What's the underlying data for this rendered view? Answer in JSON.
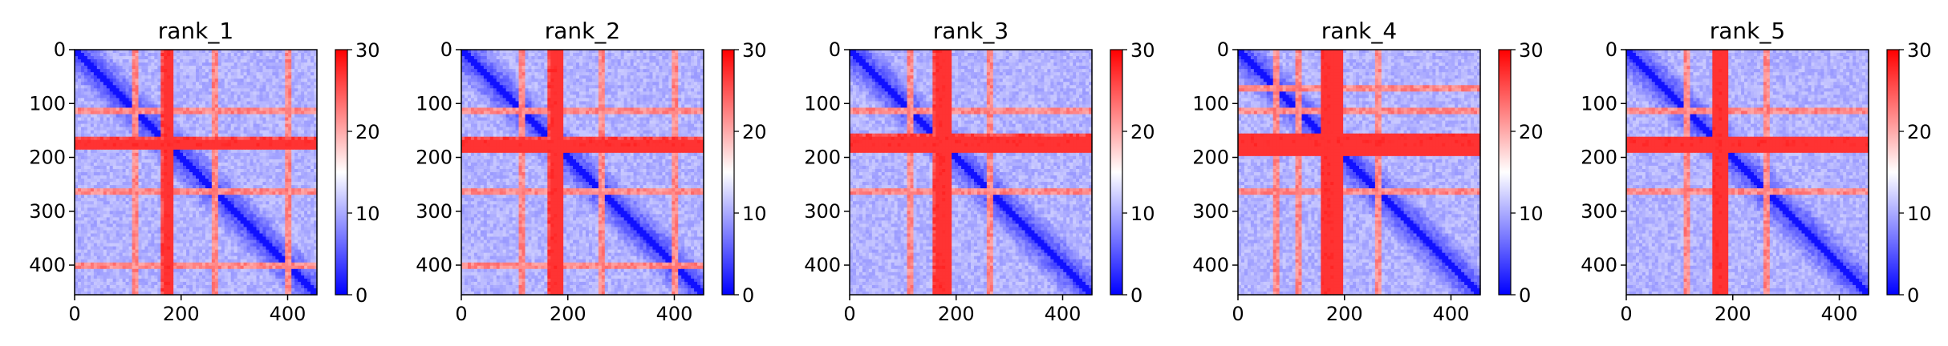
{
  "chart_data": [
    {
      "type": "heatmap",
      "title": "rank_1",
      "x_ticks": [
        0,
        200,
        400
      ],
      "y_ticks": [
        0,
        100,
        200,
        300,
        400
      ],
      "xlim": [
        0,
        455
      ],
      "ylim": [
        455,
        0
      ],
      "colorbar": {
        "ticks": [
          0,
          10,
          20,
          30
        ],
        "range": [
          0,
          30
        ],
        "colormap": "bwr"
      },
      "high_bands": [
        [
          168,
          188
        ],
        [
          109,
          121
        ],
        [
          260,
          270
        ],
        [
          395,
          407
        ]
      ],
      "high_column": [
        160,
        178
      ]
    },
    {
      "type": "heatmap",
      "title": "rank_2",
      "x_ticks": [
        0,
        200,
        400
      ],
      "y_ticks": [
        0,
        100,
        200,
        300,
        400
      ],
      "xlim": [
        0,
        455
      ],
      "ylim": [
        455,
        0
      ],
      "colorbar": {
        "ticks": [
          0,
          10,
          20,
          30
        ],
        "range": [
          0,
          30
        ],
        "colormap": "bwr"
      },
      "high_bands": [
        [
          165,
          190
        ],
        [
          109,
          121
        ],
        [
          260,
          270
        ],
        [
          395,
          407
        ]
      ],
      "high_column": [
        160,
        178
      ]
    },
    {
      "type": "heatmap",
      "title": "rank_3",
      "x_ticks": [
        0,
        200,
        400
      ],
      "y_ticks": [
        0,
        100,
        200,
        300,
        400
      ],
      "xlim": [
        0,
        455
      ],
      "ylim": [
        455,
        0
      ],
      "colorbar": {
        "ticks": [
          0,
          10,
          20,
          30
        ],
        "range": [
          0,
          30
        ],
        "colormap": "bwr"
      },
      "high_bands": [
        [
          160,
          192
        ],
        [
          110,
          122
        ],
        [
          260,
          270
        ]
      ],
      "high_column": [
        158,
        178
      ]
    },
    {
      "type": "heatmap",
      "title": "rank_4",
      "x_ticks": [
        0,
        200,
        400
      ],
      "y_ticks": [
        0,
        100,
        200,
        300,
        400
      ],
      "xlim": [
        0,
        455
      ],
      "ylim": [
        455,
        0
      ],
      "colorbar": {
        "ticks": [
          0,
          10,
          20,
          30
        ],
        "range": [
          0,
          30
        ],
        "colormap": "bwr"
      },
      "high_bands": [
        [
          155,
          195
        ],
        [
          108,
          122
        ],
        [
          68,
          76
        ],
        [
          260,
          270
        ]
      ],
      "high_column": [
        158,
        180
      ]
    },
    {
      "type": "heatmap",
      "title": "rank_5",
      "x_ticks": [
        0,
        200,
        400
      ],
      "y_ticks": [
        0,
        100,
        200,
        300,
        400
      ],
      "xlim": [
        0,
        455
      ],
      "ylim": [
        455,
        0
      ],
      "colorbar": {
        "ticks": [
          0,
          10,
          20,
          30
        ],
        "range": [
          0,
          30
        ],
        "colormap": "bwr"
      },
      "high_bands": [
        [
          162,
          190
        ],
        [
          110,
          122
        ],
        [
          260,
          270
        ]
      ],
      "high_column": [
        160,
        180
      ]
    }
  ]
}
